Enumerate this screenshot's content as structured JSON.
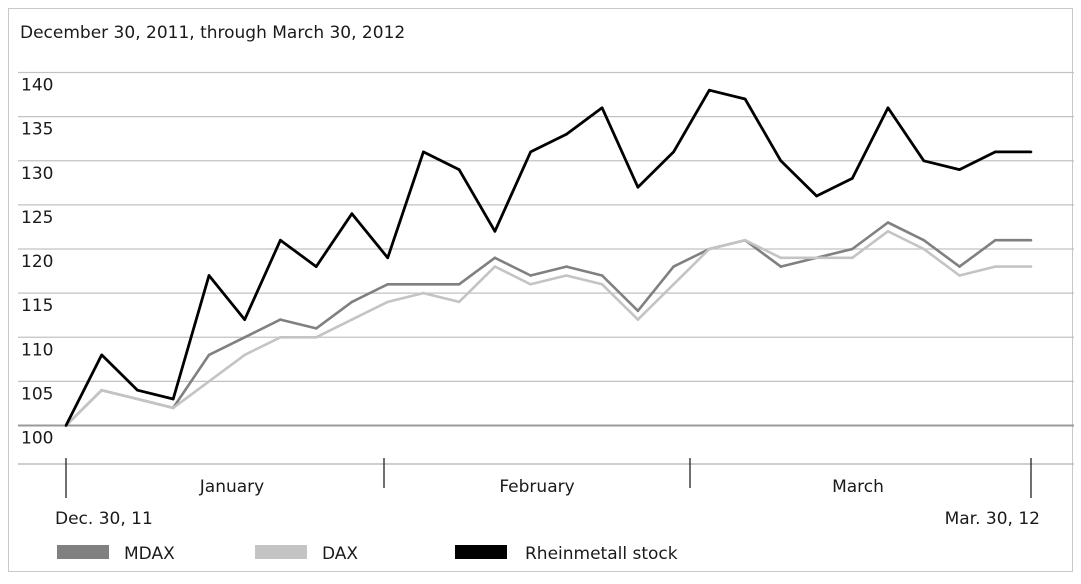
{
  "chart_data": {
    "type": "line",
    "subtitle": "December 30, 2011, through March 30, 2012",
    "ylim": [
      100,
      140
    ],
    "y_ticks": [
      "100",
      "105",
      "110",
      "115",
      "120",
      "125",
      "130",
      "135",
      "140"
    ],
    "month_labels": [
      "January",
      "February",
      "March"
    ],
    "x_start_label": "Dec. 30, 11",
    "x_end_label": "Mar. 30, 12",
    "grid": true,
    "legend_position": "bottom",
    "x": [
      "Dec 30",
      "Jan 3",
      "Jan 6",
      "Jan 9",
      "Jan 12",
      "Jan 16",
      "Jan 19",
      "Jan 23",
      "Jan 26",
      "Jan 30",
      "Feb 2",
      "Feb 6",
      "Feb 9",
      "Feb 13",
      "Feb 16",
      "Feb 20",
      "Feb 23",
      "Feb 27",
      "Mar 1",
      "Mar 5",
      "Mar 8",
      "Mar 12",
      "Mar 15",
      "Mar 19",
      "Mar 22",
      "Mar 26",
      "Mar 28",
      "Mar 30"
    ],
    "series": [
      {
        "name": "MDAX",
        "color": "#808080",
        "values": [
          100,
          104,
          103,
          102,
          108,
          110,
          112,
          111,
          114,
          116,
          116,
          116,
          119,
          117,
          118,
          117,
          113,
          118,
          120,
          121,
          118,
          119,
          120,
          123,
          121,
          118,
          121,
          121
        ]
      },
      {
        "name": "DAX",
        "color": "#c4c4c4",
        "values": [
          100,
          104,
          103,
          102,
          105,
          108,
          110,
          110,
          112,
          114,
          115,
          114,
          118,
          116,
          117,
          116,
          112,
          116,
          120,
          121,
          119,
          119,
          119,
          122,
          120,
          117,
          118,
          118
        ]
      },
      {
        "name": "Rheinmetall stock",
        "color": "#000000",
        "values": [
          100,
          108,
          104,
          103,
          117,
          112,
          121,
          118,
          124,
          119,
          131,
          129,
          122,
          131,
          133,
          136,
          127,
          131,
          138,
          137,
          130,
          126,
          128,
          136,
          130,
          129,
          131,
          131
        ]
      }
    ]
  }
}
